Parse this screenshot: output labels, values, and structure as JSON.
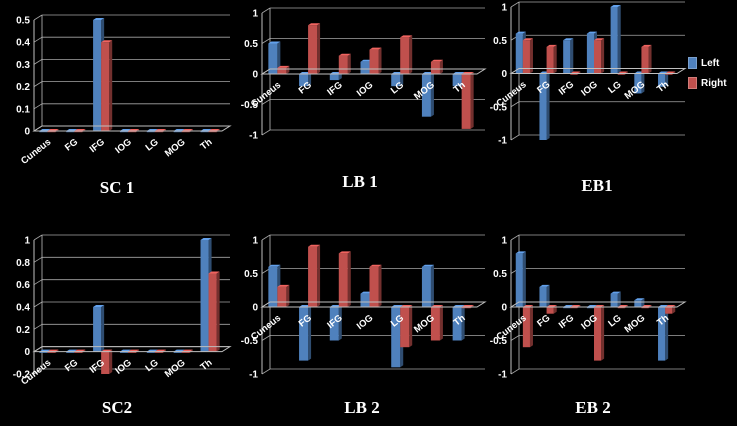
{
  "colors": {
    "background": "#000000",
    "left": "#4f81bd",
    "right": "#c0504d",
    "axis": "#bfbfbf",
    "grid": "#a6a6a6",
    "text": "#ffffff"
  },
  "legend": [
    {
      "name": "Left",
      "color": "#4f81bd"
    },
    {
      "name": "Right",
      "color": "#c0504d"
    }
  ],
  "chart_data": [
    {
      "type": "bar",
      "title": "SC 1",
      "categories": [
        "Cuneus",
        "FG",
        "IFG",
        "IOG",
        "LG",
        "MOG",
        "Th"
      ],
      "series": [
        {
          "name": "Left",
          "values": [
            0,
            0,
            0.5,
            0,
            0,
            0,
            0
          ]
        },
        {
          "name": "Right",
          "values": [
            0,
            0,
            0.4,
            0,
            0,
            0,
            0
          ]
        }
      ],
      "ylim": [
        0,
        0.5
      ],
      "yticks": [
        "0",
        "0.1",
        "0.2",
        "0.3",
        "0.4",
        "0.5"
      ],
      "grid": true,
      "xlabel": "",
      "ylabel": ""
    },
    {
      "type": "bar",
      "title": "LB 1",
      "categories": [
        "Cuneus",
        "FG",
        "IFG",
        "IOG",
        "LG",
        "MOG",
        "Th"
      ],
      "series": [
        {
          "name": "Left",
          "values": [
            0.5,
            -0.2,
            -0.1,
            0.2,
            -0.2,
            -0.7,
            -0.2
          ]
        },
        {
          "name": "Right",
          "values": [
            0.1,
            0.8,
            0.3,
            0.4,
            0.6,
            0.2,
            -0.9
          ]
        }
      ],
      "ylim": [
        -1,
        1
      ],
      "yticks": [
        "-1",
        "-0.5",
        "0",
        "0.5",
        "1"
      ],
      "grid": true,
      "xlabel": "",
      "ylabel": ""
    },
    {
      "type": "bar",
      "title": "EB1",
      "categories": [
        "Cuneus",
        "FG",
        "IFG",
        "IOG",
        "LG",
        "MOG",
        "Th"
      ],
      "series": [
        {
          "name": "Left",
          "values": [
            0.6,
            -1.0,
            0.5,
            0.6,
            1.0,
            -0.3,
            -0.2
          ]
        },
        {
          "name": "Right",
          "values": [
            0.5,
            0.4,
            0,
            0.5,
            0,
            0.4,
            0
          ]
        }
      ],
      "ylim": [
        -1,
        1
      ],
      "yticks": [
        "-1",
        "-0.5",
        "0",
        "0.5",
        "1"
      ],
      "grid": true,
      "xlabel": "",
      "ylabel": ""
    },
    {
      "type": "bar",
      "title": "SC2",
      "categories": [
        "Cuneus",
        "FG",
        "IFG",
        "IOG",
        "LG",
        "MOG",
        "Th"
      ],
      "series": [
        {
          "name": "Left",
          "values": [
            0,
            0,
            0.4,
            0,
            0,
            0,
            1.0
          ]
        },
        {
          "name": "Right",
          "values": [
            0,
            0,
            -0.2,
            0,
            0,
            0,
            0.7
          ]
        }
      ],
      "ylim": [
        -0.2,
        1
      ],
      "yticks": [
        "-0.2",
        "0",
        "0.2",
        "0.4",
        "0.6",
        "0.8",
        "1"
      ],
      "grid": true,
      "xlabel": "",
      "ylabel": ""
    },
    {
      "type": "bar",
      "title": "LB 2",
      "categories": [
        "Cuneus",
        "FG",
        "IFG",
        "IOG",
        "LG",
        "MOG",
        "Th"
      ],
      "series": [
        {
          "name": "Left",
          "values": [
            0.6,
            -0.8,
            -0.5,
            0.2,
            -0.9,
            0.6,
            -0.5
          ]
        },
        {
          "name": "Right",
          "values": [
            0.3,
            0.9,
            0.8,
            0.6,
            -0.6,
            -0.5,
            0
          ]
        }
      ],
      "ylim": [
        -1,
        1
      ],
      "yticks": [
        "-1",
        "-0.5",
        "0",
        "0.5",
        "1"
      ],
      "grid": true,
      "xlabel": "",
      "ylabel": ""
    },
    {
      "type": "bar",
      "title": "EB 2",
      "categories": [
        "Cuneus",
        "FG",
        "IFG",
        "IOG",
        "LG",
        "MOG",
        "Th"
      ],
      "series": [
        {
          "name": "Left",
          "values": [
            0.8,
            0.3,
            0,
            0,
            0.2,
            0.1,
            -0.8
          ]
        },
        {
          "name": "Right",
          "values": [
            -0.6,
            -0.1,
            0,
            -0.8,
            0,
            0,
            -0.1
          ]
        }
      ],
      "ylim": [
        -1,
        1
      ],
      "yticks": [
        "-1",
        "-0.5",
        "0",
        "0.5",
        "1"
      ],
      "grid": true,
      "xlabel": "",
      "ylabel": ""
    }
  ]
}
